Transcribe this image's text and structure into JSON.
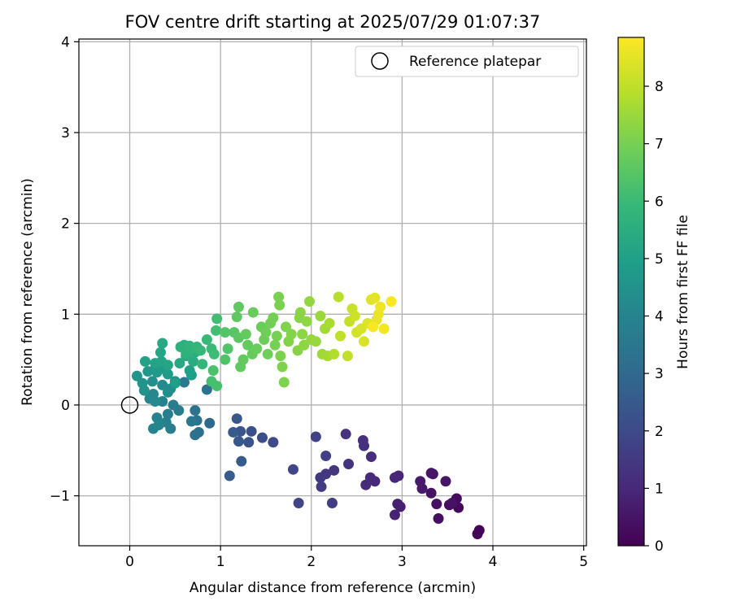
{
  "chart_data": {
    "type": "scatter",
    "title": "FOV centre drift starting at 2025/07/29 01:07:37",
    "xlabel": "Angular distance from reference (arcmin)",
    "ylabel": "Rotation from reference (arcmin)",
    "xlim": [
      -0.56,
      5.03
    ],
    "ylim": [
      -1.55,
      4.03
    ],
    "xticks": [
      "0",
      "1",
      "2",
      "3",
      "4",
      "5"
    ],
    "yticks": [
      "−1",
      "0",
      "1",
      "2",
      "3",
      "4"
    ],
    "grid": true,
    "legend": {
      "placement": "top-right",
      "entries": [
        "Reference platepar"
      ]
    },
    "reference_point": {
      "x": 0,
      "y": 0
    },
    "colorbar": {
      "label": "Hours from first FF file",
      "range": [
        0,
        8.85
      ],
      "ticks": [
        "0",
        "1",
        "2",
        "3",
        "4",
        "5",
        "6",
        "7",
        "8"
      ],
      "colormap": [
        "#440154",
        "#482878",
        "#3e4989",
        "#31688e",
        "#26828e",
        "#1f9e89",
        "#35b779",
        "#6ece58",
        "#b5de2b",
        "#fde725"
      ]
    },
    "points": [
      {
        "x": 3.83,
        "y": -1.42,
        "t": 0.05
      },
      {
        "x": 3.85,
        "y": -1.38,
        "t": 0.1
      },
      {
        "x": 3.62,
        "y": -1.13,
        "t": 0.2
      },
      {
        "x": 3.6,
        "y": -1.03,
        "t": 0.25
      },
      {
        "x": 3.52,
        "y": -1.1,
        "t": 0.3
      },
      {
        "x": 3.4,
        "y": -1.25,
        "t": 0.35
      },
      {
        "x": 3.38,
        "y": -1.09,
        "t": 0.4
      },
      {
        "x": 3.55,
        "y": -1.08,
        "t": 0.42
      },
      {
        "x": 3.32,
        "y": -0.97,
        "t": 0.45
      },
      {
        "x": 3.48,
        "y": -0.84,
        "t": 0.5
      },
      {
        "x": 3.32,
        "y": -0.75,
        "t": 0.52
      },
      {
        "x": 3.34,
        "y": -0.76,
        "t": 0.55
      },
      {
        "x": 3.22,
        "y": -0.92,
        "t": 0.6
      },
      {
        "x": 3.2,
        "y": -0.84,
        "t": 0.65
      },
      {
        "x": 2.98,
        "y": -1.12,
        "t": 0.75
      },
      {
        "x": 2.95,
        "y": -1.09,
        "t": 0.8
      },
      {
        "x": 2.92,
        "y": -1.21,
        "t": 0.85
      },
      {
        "x": 2.96,
        "y": -0.78,
        "t": 0.9
      },
      {
        "x": 2.92,
        "y": -0.8,
        "t": 0.95
      },
      {
        "x": 2.7,
        "y": -0.84,
        "t": 1.0
      },
      {
        "x": 2.65,
        "y": -0.8,
        "t": 1.05
      },
      {
        "x": 2.6,
        "y": -0.88,
        "t": 1.1
      },
      {
        "x": 2.66,
        "y": -0.57,
        "t": 1.15
      },
      {
        "x": 2.58,
        "y": -0.45,
        "t": 1.2
      },
      {
        "x": 2.57,
        "y": -0.39,
        "t": 1.25
      },
      {
        "x": 2.38,
        "y": -0.32,
        "t": 1.3
      },
      {
        "x": 2.41,
        "y": -0.65,
        "t": 1.35
      },
      {
        "x": 2.25,
        "y": -0.72,
        "t": 1.4
      },
      {
        "x": 2.16,
        "y": -0.76,
        "t": 1.45
      },
      {
        "x": 2.1,
        "y": -0.8,
        "t": 1.5
      },
      {
        "x": 2.11,
        "y": -0.9,
        "t": 1.55
      },
      {
        "x": 2.23,
        "y": -1.08,
        "t": 1.6
      },
      {
        "x": 2.16,
        "y": -0.56,
        "t": 1.7
      },
      {
        "x": 2.05,
        "y": -0.35,
        "t": 1.75
      },
      {
        "x": 1.86,
        "y": -1.08,
        "t": 1.8
      },
      {
        "x": 1.8,
        "y": -0.71,
        "t": 1.9
      },
      {
        "x": 1.58,
        "y": -0.41,
        "t": 2.0
      },
      {
        "x": 1.46,
        "y": -0.36,
        "t": 2.1
      },
      {
        "x": 1.34,
        "y": -0.29,
        "t": 2.2
      },
      {
        "x": 1.31,
        "y": -0.41,
        "t": 2.3
      },
      {
        "x": 1.22,
        "y": -0.29,
        "t": 2.35
      },
      {
        "x": 1.2,
        "y": -0.4,
        "t": 2.4
      },
      {
        "x": 1.18,
        "y": -0.15,
        "t": 2.45
      },
      {
        "x": 1.14,
        "y": -0.3,
        "t": 2.5
      },
      {
        "x": 1.23,
        "y": -0.62,
        "t": 2.55
      },
      {
        "x": 1.1,
        "y": -0.78,
        "t": 2.6
      },
      {
        "x": 0.88,
        "y": -0.2,
        "t": 3.0
      },
      {
        "x": 0.76,
        "y": -0.3,
        "t": 3.2
      },
      {
        "x": 0.72,
        "y": -0.33,
        "t": 3.3
      },
      {
        "x": 0.72,
        "y": -0.06,
        "t": 3.35
      },
      {
        "x": 0.74,
        "y": -0.17,
        "t": 3.4
      },
      {
        "x": 0.68,
        "y": -0.18,
        "t": 3.5
      },
      {
        "x": 0.85,
        "y": 0.17,
        "t": 3.4
      },
      {
        "x": 0.6,
        "y": 0.25,
        "t": 3.6
      },
      {
        "x": 0.54,
        "y": -0.06,
        "t": 3.65
      },
      {
        "x": 0.48,
        "y": 0.0,
        "t": 3.7
      },
      {
        "x": 0.45,
        "y": -0.26,
        "t": 3.75
      },
      {
        "x": 0.42,
        "y": -0.1,
        "t": 3.8
      },
      {
        "x": 0.4,
        "y": -0.19,
        "t": 3.85
      },
      {
        "x": 0.36,
        "y": 0.04,
        "t": 3.9
      },
      {
        "x": 0.3,
        "y": -0.14,
        "t": 3.95
      },
      {
        "x": 0.26,
        "y": -0.26,
        "t": 4.0
      },
      {
        "x": 0.32,
        "y": -0.22,
        "t": 4.05
      },
      {
        "x": 0.22,
        "y": 0.07,
        "t": 4.1
      },
      {
        "x": 0.26,
        "y": 0.12,
        "t": 4.15
      },
      {
        "x": 0.28,
        "y": 0.04,
        "t": 4.2
      },
      {
        "x": 0.36,
        "y": 0.22,
        "t": 4.25
      },
      {
        "x": 0.45,
        "y": 0.18,
        "t": 4.3
      },
      {
        "x": 0.5,
        "y": 0.26,
        "t": 4.35
      },
      {
        "x": 0.42,
        "y": 0.14,
        "t": 4.4
      },
      {
        "x": 0.25,
        "y": 0.26,
        "t": 4.45
      },
      {
        "x": 0.16,
        "y": 0.16,
        "t": 4.5
      },
      {
        "x": 0.14,
        "y": 0.24,
        "t": 4.55
      },
      {
        "x": 0.08,
        "y": 0.32,
        "t": 4.6
      },
      {
        "x": 0.2,
        "y": 0.37,
        "t": 4.65
      },
      {
        "x": 0.28,
        "y": 0.4,
        "t": 4.7
      },
      {
        "x": 0.35,
        "y": 0.4,
        "t": 4.75
      },
      {
        "x": 0.3,
        "y": 0.36,
        "t": 4.8
      },
      {
        "x": 0.42,
        "y": 0.34,
        "t": 4.85
      },
      {
        "x": 0.5,
        "y": 0.24,
        "t": 4.9
      },
      {
        "x": 0.68,
        "y": 0.33,
        "t": 4.95
      },
      {
        "x": 0.66,
        "y": 0.38,
        "t": 5.0
      },
      {
        "x": 0.17,
        "y": 0.48,
        "t": 5.05
      },
      {
        "x": 0.28,
        "y": 0.46,
        "t": 5.1
      },
      {
        "x": 0.35,
        "y": 0.48,
        "t": 5.15
      },
      {
        "x": 0.42,
        "y": 0.44,
        "t": 5.2
      },
      {
        "x": 0.34,
        "y": 0.58,
        "t": 5.25
      },
      {
        "x": 0.36,
        "y": 0.68,
        "t": 5.3
      },
      {
        "x": 0.55,
        "y": 0.46,
        "t": 5.35
      },
      {
        "x": 0.62,
        "y": 0.54,
        "t": 5.4
      },
      {
        "x": 0.7,
        "y": 0.48,
        "t": 5.45
      },
      {
        "x": 0.72,
        "y": 0.58,
        "t": 5.5
      },
      {
        "x": 0.6,
        "y": 0.66,
        "t": 5.55
      },
      {
        "x": 0.56,
        "y": 0.64,
        "t": 5.6
      },
      {
        "x": 0.62,
        "y": 0.57,
        "t": 5.65
      },
      {
        "x": 0.66,
        "y": 0.65,
        "t": 5.7
      },
      {
        "x": 0.68,
        "y": 0.62,
        "t": 5.75
      },
      {
        "x": 0.74,
        "y": 0.64,
        "t": 5.8
      },
      {
        "x": 0.8,
        "y": 0.45,
        "t": 5.85
      },
      {
        "x": 0.78,
        "y": 0.6,
        "t": 5.9
      },
      {
        "x": 0.85,
        "y": 0.72,
        "t": 5.95
      },
      {
        "x": 0.9,
        "y": 0.62,
        "t": 6.0
      },
      {
        "x": 0.93,
        "y": 0.56,
        "t": 6.05
      },
      {
        "x": 0.96,
        "y": 0.95,
        "t": 6.1
      },
      {
        "x": 0.95,
        "y": 0.82,
        "t": 6.15
      },
      {
        "x": 0.9,
        "y": 0.26,
        "t": 6.2
      },
      {
        "x": 0.96,
        "y": 0.21,
        "t": 6.25
      },
      {
        "x": 0.92,
        "y": 0.38,
        "t": 6.3
      },
      {
        "x": 1.05,
        "y": 0.5,
        "t": 6.35
      },
      {
        "x": 1.08,
        "y": 0.62,
        "t": 6.4
      },
      {
        "x": 1.05,
        "y": 0.8,
        "t": 6.45
      },
      {
        "x": 1.15,
        "y": 0.8,
        "t": 6.5
      },
      {
        "x": 1.2,
        "y": 0.74,
        "t": 6.55
      },
      {
        "x": 1.18,
        "y": 0.97,
        "t": 6.6
      },
      {
        "x": 1.2,
        "y": 1.08,
        "t": 6.62
      },
      {
        "x": 1.22,
        "y": 0.42,
        "t": 6.65
      },
      {
        "x": 1.25,
        "y": 0.5,
        "t": 6.68
      },
      {
        "x": 1.3,
        "y": 0.66,
        "t": 6.7
      },
      {
        "x": 1.28,
        "y": 0.78,
        "t": 6.72
      },
      {
        "x": 1.35,
        "y": 0.56,
        "t": 6.75
      },
      {
        "x": 1.36,
        "y": 1.02,
        "t": 6.78
      },
      {
        "x": 1.4,
        "y": 0.62,
        "t": 6.8
      },
      {
        "x": 1.45,
        "y": 0.86,
        "t": 6.82
      },
      {
        "x": 1.48,
        "y": 0.72,
        "t": 6.85
      },
      {
        "x": 1.5,
        "y": 0.8,
        "t": 6.88
      },
      {
        "x": 1.52,
        "y": 0.56,
        "t": 6.9
      },
      {
        "x": 1.55,
        "y": 0.9,
        "t": 6.92
      },
      {
        "x": 1.58,
        "y": 0.96,
        "t": 6.95
      },
      {
        "x": 1.6,
        "y": 0.66,
        "t": 6.98
      },
      {
        "x": 1.62,
        "y": 0.76,
        "t": 7.0
      },
      {
        "x": 1.64,
        "y": 1.19,
        "t": 7.02
      },
      {
        "x": 1.65,
        "y": 1.1,
        "t": 7.05
      },
      {
        "x": 1.66,
        "y": 0.54,
        "t": 7.08
      },
      {
        "x": 1.68,
        "y": 0.42,
        "t": 7.1
      },
      {
        "x": 1.7,
        "y": 0.25,
        "t": 7.12
      },
      {
        "x": 1.72,
        "y": 0.86,
        "t": 7.15
      },
      {
        "x": 1.75,
        "y": 0.7,
        "t": 7.18
      },
      {
        "x": 1.78,
        "y": 0.78,
        "t": 7.2
      },
      {
        "x": 1.85,
        "y": 0.6,
        "t": 7.22
      },
      {
        "x": 1.87,
        "y": 0.96,
        "t": 7.25
      },
      {
        "x": 1.88,
        "y": 1.02,
        "t": 7.28
      },
      {
        "x": 1.9,
        "y": 0.78,
        "t": 7.3
      },
      {
        "x": 1.92,
        "y": 0.66,
        "t": 7.33
      },
      {
        "x": 1.95,
        "y": 0.92,
        "t": 7.36
      },
      {
        "x": 1.98,
        "y": 1.14,
        "t": 7.4
      },
      {
        "x": 2.0,
        "y": 0.72,
        "t": 7.43
      },
      {
        "x": 2.05,
        "y": 0.7,
        "t": 7.46
      },
      {
        "x": 2.1,
        "y": 0.98,
        "t": 7.5
      },
      {
        "x": 2.12,
        "y": 0.56,
        "t": 7.55
      },
      {
        "x": 2.15,
        "y": 0.84,
        "t": 7.6
      },
      {
        "x": 2.18,
        "y": 0.54,
        "t": 7.65
      },
      {
        "x": 2.2,
        "y": 0.9,
        "t": 7.7
      },
      {
        "x": 2.25,
        "y": 0.56,
        "t": 7.8
      },
      {
        "x": 2.3,
        "y": 1.19,
        "t": 7.9
      },
      {
        "x": 2.32,
        "y": 0.76,
        "t": 8.0
      },
      {
        "x": 2.4,
        "y": 0.54,
        "t": 8.05
      },
      {
        "x": 2.42,
        "y": 0.92,
        "t": 8.1
      },
      {
        "x": 2.45,
        "y": 1.06,
        "t": 8.15
      },
      {
        "x": 2.48,
        "y": 0.98,
        "t": 8.2
      },
      {
        "x": 2.5,
        "y": 0.8,
        "t": 8.25
      },
      {
        "x": 2.55,
        "y": 0.84,
        "t": 8.3
      },
      {
        "x": 2.58,
        "y": 0.7,
        "t": 8.35
      },
      {
        "x": 2.62,
        "y": 0.9,
        "t": 8.4
      },
      {
        "x": 2.66,
        "y": 1.16,
        "t": 8.45
      },
      {
        "x": 2.7,
        "y": 1.18,
        "t": 8.5
      },
      {
        "x": 2.72,
        "y": 0.94,
        "t": 8.55
      },
      {
        "x": 2.74,
        "y": 1.0,
        "t": 8.6
      },
      {
        "x": 2.76,
        "y": 1.08,
        "t": 8.65
      },
      {
        "x": 2.8,
        "y": 0.84,
        "t": 8.7
      },
      {
        "x": 2.88,
        "y": 1.14,
        "t": 8.75
      },
      {
        "x": 2.68,
        "y": 0.86,
        "t": 8.8
      }
    ]
  }
}
